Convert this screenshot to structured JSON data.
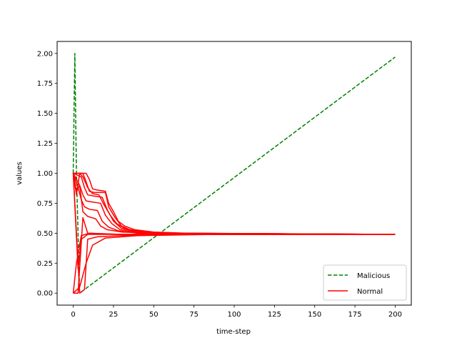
{
  "chart_data": {
    "type": "line",
    "title": "",
    "xlabel": "time-step",
    "ylabel": "values",
    "xlim": [
      -10,
      210
    ],
    "ylim": [
      -0.1,
      2.1
    ],
    "xticks": [
      0,
      25,
      50,
      75,
      100,
      125,
      150,
      175,
      200
    ],
    "yticks": [
      0.0,
      0.25,
      0.5,
      0.75,
      1.0,
      1.25,
      1.5,
      1.75,
      2.0
    ],
    "xtick_labels": [
      "0",
      "25",
      "50",
      "75",
      "100",
      "125",
      "150",
      "175",
      "200"
    ],
    "ytick_labels": [
      "0.00",
      "0.25",
      "0.50",
      "0.75",
      "1.00",
      "1.25",
      "1.50",
      "1.75",
      "2.00"
    ],
    "grid": false,
    "legend_position": "lower-right",
    "legend": [
      {
        "name": "Malicious",
        "color": "#008000",
        "style": "dashed"
      },
      {
        "name": "Normal",
        "color": "#ff0000",
        "style": "solid"
      }
    ],
    "series": [
      {
        "group": "Malicious",
        "color": "#008000",
        "style": "dashed",
        "points": [
          [
            0,
            1.0
          ],
          [
            1,
            2.0
          ],
          [
            2,
            1.0
          ],
          [
            4,
            0.0
          ],
          [
            200,
            1.97
          ]
        ]
      },
      {
        "group": "Normal",
        "color": "#ff0000",
        "style": "solid",
        "points": [
          [
            0,
            1.0
          ],
          [
            4,
            0.0
          ],
          [
            7,
            0.03
          ],
          [
            9,
            0.45
          ],
          [
            15,
            0.47
          ],
          [
            30,
            0.48
          ],
          [
            60,
            0.49
          ],
          [
            200,
            0.49
          ]
        ]
      },
      {
        "group": "Normal",
        "color": "#ff0000",
        "style": "solid",
        "points": [
          [
            0,
            1.0
          ],
          [
            3,
            0.2
          ],
          [
            5,
            0.45
          ],
          [
            9,
            0.49
          ],
          [
            25,
            0.49
          ],
          [
            60,
            0.49
          ],
          [
            200,
            0.49
          ]
        ]
      },
      {
        "group": "Normal",
        "color": "#ff0000",
        "style": "solid",
        "points": [
          [
            0,
            0.0
          ],
          [
            2,
            0.25
          ],
          [
            5,
            0.48
          ],
          [
            10,
            0.5
          ],
          [
            30,
            0.49
          ],
          [
            200,
            0.49
          ]
        ]
      },
      {
        "group": "Normal",
        "color": "#ff0000",
        "style": "solid",
        "points": [
          [
            0,
            0.0
          ],
          [
            3,
            0.0
          ],
          [
            6,
            0.63
          ],
          [
            9,
            0.5
          ],
          [
            25,
            0.49
          ],
          [
            200,
            0.49
          ]
        ]
      },
      {
        "group": "Normal",
        "color": "#ff0000",
        "style": "solid",
        "points": [
          [
            0,
            0.0
          ],
          [
            4,
            0.05
          ],
          [
            8,
            0.25
          ],
          [
            12,
            0.4
          ],
          [
            20,
            0.46
          ],
          [
            40,
            0.48
          ],
          [
            90,
            0.49
          ],
          [
            200,
            0.49
          ]
        ]
      },
      {
        "group": "Normal",
        "color": "#ff0000",
        "style": "solid",
        "points": [
          [
            0,
            1.0
          ],
          [
            8,
            1.0
          ],
          [
            10,
            0.95
          ],
          [
            12,
            0.87
          ],
          [
            15,
            0.86
          ],
          [
            20,
            0.85
          ],
          [
            22,
            0.75
          ],
          [
            25,
            0.68
          ],
          [
            28,
            0.6
          ],
          [
            32,
            0.56
          ],
          [
            38,
            0.53
          ],
          [
            50,
            0.51
          ],
          [
            70,
            0.5
          ],
          [
            200,
            0.49
          ]
        ]
      },
      {
        "group": "Normal",
        "color": "#ff0000",
        "style": "solid",
        "points": [
          [
            0,
            1.0
          ],
          [
            6,
            1.0
          ],
          [
            8,
            0.93
          ],
          [
            10,
            0.85
          ],
          [
            13,
            0.84
          ],
          [
            20,
            0.84
          ],
          [
            22,
            0.72
          ],
          [
            26,
            0.63
          ],
          [
            30,
            0.56
          ],
          [
            35,
            0.53
          ],
          [
            45,
            0.51
          ],
          [
            65,
            0.5
          ],
          [
            200,
            0.49
          ]
        ]
      },
      {
        "group": "Normal",
        "color": "#ff0000",
        "style": "solid",
        "points": [
          [
            0,
            1.0
          ],
          [
            5,
            0.97
          ],
          [
            7,
            0.88
          ],
          [
            9,
            0.82
          ],
          [
            13,
            0.81
          ],
          [
            18,
            0.8
          ],
          [
            21,
            0.7
          ],
          [
            25,
            0.6
          ],
          [
            30,
            0.54
          ],
          [
            40,
            0.51
          ],
          [
            60,
            0.5
          ],
          [
            200,
            0.49
          ]
        ]
      },
      {
        "group": "Normal",
        "color": "#ff0000",
        "style": "solid",
        "points": [
          [
            0,
            1.0
          ],
          [
            4,
            0.9
          ],
          [
            6,
            0.82
          ],
          [
            8,
            0.77
          ],
          [
            12,
            0.76
          ],
          [
            17,
            0.75
          ],
          [
            20,
            0.65
          ],
          [
            24,
            0.58
          ],
          [
            29,
            0.53
          ],
          [
            38,
            0.51
          ],
          [
            60,
            0.5
          ],
          [
            200,
            0.49
          ]
        ]
      },
      {
        "group": "Normal",
        "color": "#ff0000",
        "style": "solid",
        "points": [
          [
            0,
            1.0
          ],
          [
            3,
            0.88
          ],
          [
            5,
            0.78
          ],
          [
            7,
            0.72
          ],
          [
            10,
            0.7
          ],
          [
            15,
            0.69
          ],
          [
            18,
            0.6
          ],
          [
            22,
            0.55
          ],
          [
            28,
            0.52
          ],
          [
            40,
            0.5
          ],
          [
            200,
            0.49
          ]
        ]
      },
      {
        "group": "Normal",
        "color": "#ff0000",
        "style": "solid",
        "points": [
          [
            0,
            1.0
          ],
          [
            2,
            0.85
          ],
          [
            4,
            0.9
          ],
          [
            6,
            0.68
          ],
          [
            9,
            0.64
          ],
          [
            14,
            0.62
          ],
          [
            17,
            0.56
          ],
          [
            21,
            0.53
          ],
          [
            30,
            0.51
          ],
          [
            50,
            0.5
          ],
          [
            200,
            0.49
          ]
        ]
      },
      {
        "group": "Normal",
        "color": "#ff0000",
        "style": "solid",
        "points": [
          [
            0,
            1.0
          ],
          [
            2,
            0.82
          ],
          [
            4,
            1.0
          ],
          [
            6,
            0.97
          ],
          [
            9,
            0.88
          ],
          [
            12,
            0.83
          ],
          [
            16,
            0.82
          ],
          [
            19,
            0.74
          ],
          [
            23,
            0.65
          ],
          [
            27,
            0.58
          ],
          [
            32,
            0.54
          ],
          [
            42,
            0.51
          ],
          [
            60,
            0.5
          ],
          [
            200,
            0.49
          ]
        ]
      }
    ]
  }
}
